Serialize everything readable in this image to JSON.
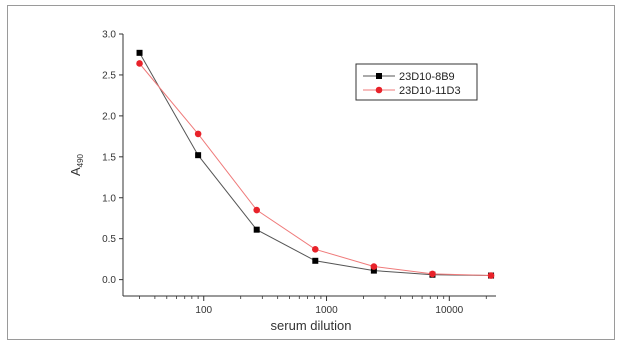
{
  "chart_data": {
    "type": "line",
    "title": "",
    "xlabel": "serum dilution",
    "ylabel": "A",
    "ylabel_subscript": "490",
    "x_scale": "log",
    "xlim": [
      22,
      24000
    ],
    "ylim": [
      -0.2,
      3.0
    ],
    "x_ticks": [
      100,
      1000,
      10000
    ],
    "x_tick_labels": [
      "100",
      "1000",
      "10000"
    ],
    "y_ticks": [
      0.0,
      0.5,
      1.0,
      1.5,
      2.0,
      2.5,
      3.0
    ],
    "y_tick_labels": [
      "0.0",
      "0.5",
      "1.0",
      "1.5",
      "2.0",
      "2.5",
      "3.0"
    ],
    "grid": false,
    "legend_position": "top-right",
    "x": [
      30,
      90,
      270,
      810,
      2430,
      7290,
      21870
    ],
    "series": [
      {
        "name": "23D10-8B9",
        "marker": "square",
        "color": "#000000",
        "line_color": "#555555",
        "values": [
          2.77,
          1.52,
          0.61,
          0.23,
          0.11,
          0.06,
          0.05
        ]
      },
      {
        "name": "23D10-11D3",
        "marker": "circle",
        "color": "#e8222a",
        "line_color": "#ef7a7a",
        "values": [
          2.64,
          1.78,
          0.85,
          0.37,
          0.16,
          0.07,
          0.05
        ]
      }
    ]
  }
}
